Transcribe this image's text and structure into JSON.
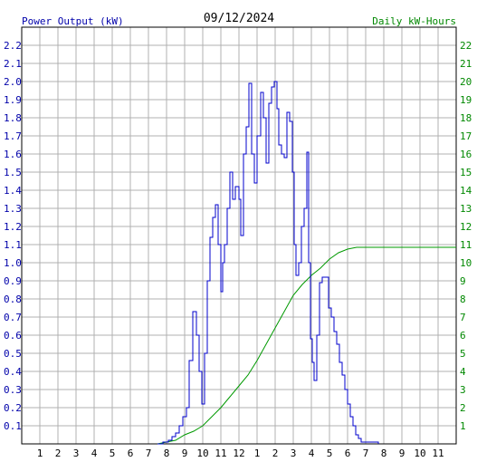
{
  "chart_data": {
    "type": "line",
    "date": "09/12/2024",
    "left_axis_label": "Power Output (kW)",
    "right_axis_label": "Daily kW-Hours",
    "x_tick_labels": [
      "1",
      "2",
      "3",
      "4",
      "5",
      "6",
      "7",
      "8",
      "9",
      "10",
      "11",
      "12",
      "1",
      "2",
      "3",
      "4",
      "5",
      "6",
      "7",
      "8",
      "9",
      "10",
      "11"
    ],
    "y_left_ticks": [
      "0.1",
      "0.2",
      "0.3",
      "0.4",
      "0.5",
      "0.6",
      "0.7",
      "0.8",
      "0.9",
      "1.0",
      "1.1",
      "1.2",
      "1.3",
      "1.4",
      "1.5",
      "1.6",
      "1.7",
      "1.8",
      "1.9",
      "2.0",
      "2.1",
      "2.2"
    ],
    "y_right_ticks": [
      "1",
      "2",
      "3",
      "4",
      "5",
      "6",
      "7",
      "8",
      "9",
      "10",
      "11",
      "12",
      "13",
      "14",
      "15",
      "16",
      "17",
      "18",
      "19",
      "20",
      "21",
      "22"
    ],
    "x_range_hours": [
      0,
      24
    ],
    "y_left_range": [
      0,
      2.3
    ],
    "y_right_range": [
      0,
      23
    ],
    "grid": true,
    "colors": {
      "left_axis": "#0000aa",
      "right_axis": "#008800",
      "power_line": "#0000cc",
      "energy_line": "#009900",
      "grid": "#b0b0b0",
      "border": "#000000"
    },
    "series": [
      {
        "axis": "left",
        "values": [
          [
            7.5,
            0.0
          ],
          [
            7.8,
            0.01
          ],
          [
            8.1,
            0.02
          ],
          [
            8.3,
            0.04
          ],
          [
            8.5,
            0.06
          ],
          [
            8.7,
            0.1
          ],
          [
            8.9,
            0.15
          ],
          [
            9.1,
            0.2
          ],
          [
            9.25,
            0.46
          ],
          [
            9.45,
            0.73
          ],
          [
            9.65,
            0.6
          ],
          [
            9.8,
            0.4
          ],
          [
            9.95,
            0.22
          ],
          [
            10.1,
            0.5
          ],
          [
            10.25,
            0.9
          ],
          [
            10.4,
            1.14
          ],
          [
            10.55,
            1.25
          ],
          [
            10.7,
            1.32
          ],
          [
            10.85,
            1.1
          ],
          [
            11.0,
            0.84
          ],
          [
            11.1,
            1.0
          ],
          [
            11.2,
            1.1
          ],
          [
            11.35,
            1.3
          ],
          [
            11.5,
            1.5
          ],
          [
            11.65,
            1.35
          ],
          [
            11.8,
            1.42
          ],
          [
            12.0,
            1.35
          ],
          [
            12.1,
            1.15
          ],
          [
            12.25,
            1.6
          ],
          [
            12.4,
            1.75
          ],
          [
            12.55,
            1.99
          ],
          [
            12.7,
            1.6
          ],
          [
            12.85,
            1.44
          ],
          [
            13.0,
            1.7
          ],
          [
            13.2,
            1.94
          ],
          [
            13.35,
            1.8
          ],
          [
            13.5,
            1.55
          ],
          [
            13.65,
            1.88
          ],
          [
            13.8,
            1.97
          ],
          [
            13.95,
            2.0
          ],
          [
            14.1,
            1.85
          ],
          [
            14.2,
            1.65
          ],
          [
            14.35,
            1.6
          ],
          [
            14.5,
            1.58
          ],
          [
            14.65,
            1.83
          ],
          [
            14.8,
            1.78
          ],
          [
            14.95,
            1.5
          ],
          [
            15.05,
            1.1
          ],
          [
            15.15,
            0.93
          ],
          [
            15.3,
            1.0
          ],
          [
            15.45,
            1.2
          ],
          [
            15.6,
            1.3
          ],
          [
            15.75,
            1.61
          ],
          [
            15.85,
            1.0
          ],
          [
            15.95,
            0.58
          ],
          [
            16.05,
            0.45
          ],
          [
            16.15,
            0.35
          ],
          [
            16.3,
            0.6
          ],
          [
            16.45,
            0.89
          ],
          [
            16.6,
            0.92
          ],
          [
            16.8,
            0.92
          ],
          [
            16.95,
            0.75
          ],
          [
            17.1,
            0.7
          ],
          [
            17.25,
            0.62
          ],
          [
            17.4,
            0.55
          ],
          [
            17.55,
            0.45
          ],
          [
            17.7,
            0.38
          ],
          [
            17.85,
            0.3
          ],
          [
            18.0,
            0.22
          ],
          [
            18.15,
            0.15
          ],
          [
            18.3,
            0.1
          ],
          [
            18.45,
            0.05
          ],
          [
            18.6,
            0.03
          ],
          [
            18.75,
            0.01
          ],
          [
            19.0,
            0.01
          ],
          [
            19.7,
            0.0
          ]
        ]
      },
      {
        "axis": "right",
        "values": [
          [
            7.5,
            0.0
          ],
          [
            8.0,
            0.1
          ],
          [
            8.5,
            0.2
          ],
          [
            9.0,
            0.5
          ],
          [
            9.5,
            0.7
          ],
          [
            10.0,
            1.0
          ],
          [
            10.5,
            1.5
          ],
          [
            11.0,
            2.0
          ],
          [
            11.5,
            2.6
          ],
          [
            12.0,
            3.2
          ],
          [
            12.5,
            3.8
          ],
          [
            13.0,
            4.6
          ],
          [
            13.5,
            5.5
          ],
          [
            14.0,
            6.4
          ],
          [
            14.5,
            7.3
          ],
          [
            15.0,
            8.2
          ],
          [
            15.5,
            8.8
          ],
          [
            16.0,
            9.3
          ],
          [
            16.5,
            9.7
          ],
          [
            17.0,
            10.2
          ],
          [
            17.5,
            10.55
          ],
          [
            18.0,
            10.75
          ],
          [
            18.5,
            10.85
          ],
          [
            19.0,
            10.85
          ],
          [
            24.0,
            10.85
          ]
        ]
      }
    ]
  }
}
